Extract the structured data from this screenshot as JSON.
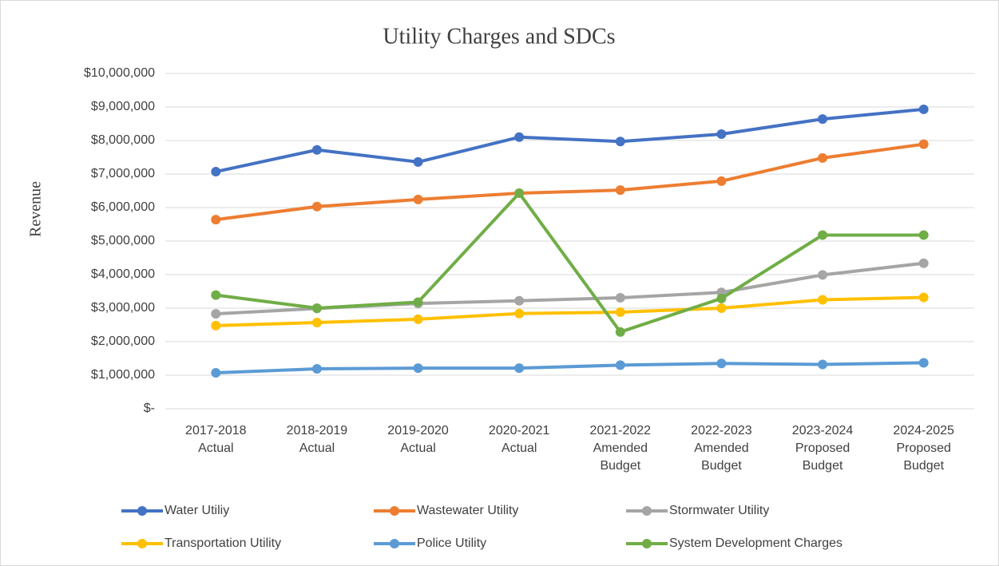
{
  "chart_data": {
    "type": "line",
    "title": "Utility Charges and SDCs",
    "y_label": "Revenue",
    "categories": [
      "2017-2018\nActual",
      "2018-2019\nActual",
      "2019-2020\nActual",
      "2020-2021\nActual",
      "2021-2022\nAmended\nBudget",
      "2022-2023\nAmended\nBudget",
      "2023-2024\nProposed\nBudget",
      "2024-2025\nProposed\nBudget"
    ],
    "series": [
      {
        "name": "Water Utiliy",
        "color": "#4472c4",
        "values": [
          7070000,
          7720000,
          7360000,
          8100000,
          7970000,
          8190000,
          8640000,
          8930000
        ]
      },
      {
        "name": "Wastewater Utility",
        "color": "#ed7d31",
        "values": [
          5640000,
          6030000,
          6240000,
          6430000,
          6520000,
          6790000,
          7480000,
          7890000
        ]
      },
      {
        "name": "Stormwater Utility",
        "color": "#a5a5a5",
        "values": [
          2830000,
          2990000,
          3140000,
          3220000,
          3310000,
          3470000,
          3990000,
          4340000
        ]
      },
      {
        "name": "Transportation Utility",
        "color": "#ffc000",
        "values": [
          2480000,
          2570000,
          2670000,
          2840000,
          2880000,
          3000000,
          3250000,
          3320000
        ]
      },
      {
        "name": "Police Utility",
        "color": "#5b9bd5",
        "values": [
          1070000,
          1190000,
          1210000,
          1210000,
          1300000,
          1350000,
          1320000,
          1370000
        ]
      },
      {
        "name": "System Development Charges",
        "color": "#70ad47",
        "values": [
          3390000,
          3000000,
          3180000,
          6430000,
          2290000,
          3290000,
          5180000,
          5180000
        ]
      }
    ],
    "ylim": [
      0,
      10000000
    ],
    "yticks": [
      {
        "value": 0,
        "label": "$-"
      },
      {
        "value": 1000000,
        "label": "$1,000,000"
      },
      {
        "value": 2000000,
        "label": "$2,000,000"
      },
      {
        "value": 3000000,
        "label": "$3,000,000"
      },
      {
        "value": 4000000,
        "label": "$4,000,000"
      },
      {
        "value": 5000000,
        "label": "$5,000,000"
      },
      {
        "value": 6000000,
        "label": "$6,000,000"
      },
      {
        "value": 7000000,
        "label": "$7,000,000"
      },
      {
        "value": 8000000,
        "label": "$8,000,000"
      },
      {
        "value": 9000000,
        "label": "$9,000,000"
      },
      {
        "value": 10000000,
        "label": "$10,000,000"
      }
    ],
    "grid": true,
    "legend": "bottom"
  }
}
